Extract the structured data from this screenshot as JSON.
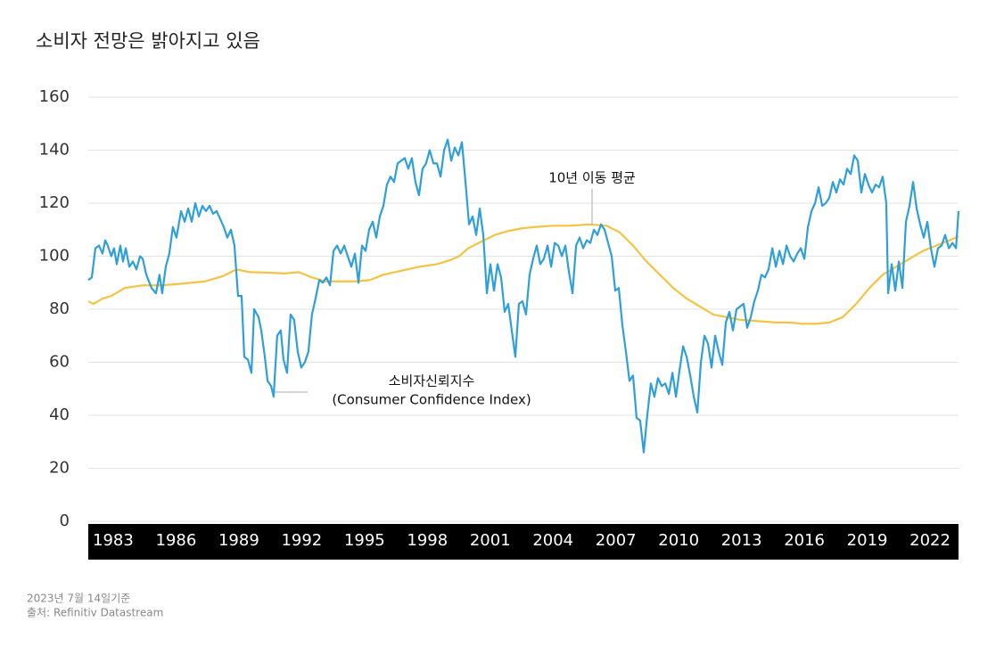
{
  "chart_data": {
    "type": "line",
    "title": "소비자 전망은 밝아지고 있음",
    "notes": [
      "2023년 7월 14일기준",
      "출처: Refinitiv Datastream"
    ],
    "xlim": [
      1981.81,
      2023.36
    ],
    "xticks": [
      1983,
      1986,
      1989,
      1992,
      1995,
      1998,
      2001,
      2004,
      2007,
      2010,
      2013,
      2016,
      2019,
      2022
    ],
    "ylim": [
      0,
      160
    ],
    "yticks": [
      0,
      20,
      40,
      60,
      80,
      100,
      120,
      140,
      160
    ],
    "grid": true,
    "series": [
      {
        "name": "소비자신뢰지수",
        "name_en": "(Consumer Confidence Index)",
        "color": "#2e9fd8",
        "x": [
          1981.81,
          1981.98,
          1982.15,
          1982.32,
          1982.49,
          1982.62,
          1982.74,
          1982.91,
          1983.04,
          1983.17,
          1983.34,
          1983.47,
          1983.6,
          1983.77,
          1983.94,
          1984.11,
          1984.28,
          1984.41,
          1984.58,
          1984.83,
          1985.04,
          1985.21,
          1985.34,
          1985.51,
          1985.68,
          1985.85,
          1986.02,
          1986.24,
          1986.41,
          1986.58,
          1986.75,
          1986.92,
          1987.09,
          1987.26,
          1987.43,
          1987.6,
          1987.77,
          1987.94,
          1988.11,
          1988.28,
          1988.45,
          1988.62,
          1988.79,
          1988.96,
          1989.13,
          1989.26,
          1989.43,
          1989.6,
          1989.73,
          1989.94,
          1990.07,
          1990.24,
          1990.37,
          1990.54,
          1990.66,
          1990.83,
          1991.0,
          1991.13,
          1991.3,
          1991.47,
          1991.64,
          1991.81,
          1991.98,
          1992.15,
          1992.32,
          1992.49,
          1992.66,
          1992.84,
          1993.01,
          1993.18,
          1993.35,
          1993.52,
          1993.69,
          1993.86,
          1994.03,
          1994.2,
          1994.37,
          1994.54,
          1994.71,
          1994.88,
          1995.05,
          1995.22,
          1995.39,
          1995.56,
          1995.73,
          1995.9,
          1996.07,
          1996.24,
          1996.41,
          1996.58,
          1996.75,
          1996.92,
          1997.09,
          1997.26,
          1997.43,
          1997.6,
          1997.77,
          1997.94,
          1998.11,
          1998.29,
          1998.46,
          1998.63,
          1998.8,
          1998.97,
          1999.14,
          1999.31,
          1999.48,
          1999.65,
          1999.82,
          1999.99,
          2000.16,
          2000.33,
          2000.5,
          2000.67,
          2000.84,
          2001.01,
          2001.18,
          2001.35,
          2001.52,
          2001.69,
          2001.86,
          2002.03,
          2002.2,
          2002.37,
          2002.54,
          2002.71,
          2002.88,
          2003.05,
          2003.22,
          2003.39,
          2003.56,
          2003.74,
          2003.91,
          2004.08,
          2004.25,
          2004.42,
          2004.59,
          2004.76,
          2004.93,
          2005.1,
          2005.27,
          2005.44,
          2005.61,
          2005.78,
          2005.95,
          2006.12,
          2006.29,
          2006.46,
          2006.63,
          2006.8,
          2006.97,
          2007.14,
          2007.31,
          2007.48,
          2007.65,
          2007.82,
          2007.99,
          2008.16,
          2008.33,
          2008.5,
          2008.67,
          2008.84,
          2009.01,
          2009.19,
          2009.36,
          2009.53,
          2009.7,
          2009.87,
          2010.04,
          2010.21,
          2010.38,
          2010.55,
          2010.72,
          2010.89,
          2011.06,
          2011.23,
          2011.4,
          2011.57,
          2011.74,
          2011.91,
          2012.08,
          2012.25,
          2012.42,
          2012.59,
          2012.76,
          2012.93,
          2013.1,
          2013.27,
          2013.44,
          2013.61,
          2013.78,
          2013.95,
          2014.12,
          2014.29,
          2014.47,
          2014.64,
          2014.81,
          2014.98,
          2015.15,
          2015.32,
          2015.49,
          2015.66,
          2015.83,
          2016.0,
          2016.17,
          2016.34,
          2016.51,
          2016.68,
          2016.85,
          2017.02,
          2017.19,
          2017.36,
          2017.53,
          2017.7,
          2017.87,
          2018.04,
          2018.21,
          2018.38,
          2018.55,
          2018.72,
          2018.89,
          2019.06,
          2019.23,
          2019.4,
          2019.57,
          2019.74,
          2019.91,
          2020.0,
          2020.17,
          2020.34,
          2020.51,
          2020.68,
          2020.85,
          2021.02,
          2021.19,
          2021.36,
          2021.53,
          2021.7,
          2021.87,
          2022.04,
          2022.21,
          2022.38,
          2022.55,
          2022.72,
          2022.9,
          2023.07,
          2023.24,
          2023.36
        ],
        "values": [
          91,
          92,
          103,
          104,
          101,
          106,
          104,
          100,
          103,
          97,
          104,
          98,
          103,
          96,
          98,
          95,
          100,
          99,
          93,
          88,
          86,
          93,
          86,
          96,
          101,
          111,
          107,
          117,
          113,
          118,
          113,
          120,
          115,
          119,
          117,
          119,
          116,
          117,
          114,
          111,
          107,
          110,
          104,
          85,
          85,
          62,
          61,
          56,
          80,
          77,
          72,
          62,
          53,
          51,
          47,
          70,
          72,
          61,
          56,
          78,
          76,
          64,
          58,
          60,
          64,
          78,
          84,
          91,
          90,
          92,
          89,
          102,
          104,
          101,
          104,
          100,
          96,
          101,
          90,
          104,
          102,
          110,
          113,
          107,
          115,
          119,
          127,
          130,
          128,
          135,
          136,
          137,
          133,
          137,
          128,
          123,
          133,
          135,
          140,
          135,
          135,
          130,
          140,
          144,
          136,
          141,
          138,
          143,
          128,
          112,
          115,
          108,
          118,
          108,
          86,
          97,
          87,
          97,
          92,
          79,
          82,
          72,
          62,
          82,
          83,
          78,
          93,
          99,
          104,
          97,
          99,
          104,
          96,
          105,
          104,
          100,
          104,
          94,
          86,
          104,
          107,
          103,
          106,
          105,
          110,
          108,
          112,
          110,
          105,
          100,
          87,
          88,
          74,
          64,
          53,
          55,
          39,
          38,
          26,
          40,
          52,
          47,
          54,
          51,
          52,
          48,
          56,
          47,
          57,
          66,
          62,
          55,
          47,
          41,
          60,
          70,
          67,
          58,
          70,
          64,
          59,
          75,
          79,
          72,
          80,
          81,
          82,
          73,
          77,
          83,
          87,
          93,
          92,
          95,
          103,
          96,
          102,
          97,
          104,
          100,
          98,
          101,
          103,
          99,
          111,
          117,
          120,
          126,
          119,
          120,
          122,
          128,
          124,
          129,
          127,
          133,
          131,
          138,
          136,
          124,
          131,
          127,
          124,
          127,
          126,
          130,
          120,
          86,
          97,
          87,
          98,
          88,
          113,
          119,
          128,
          118,
          112,
          107,
          113,
          103,
          96,
          103,
          104,
          108,
          103,
          105,
          103,
          117
        ]
      },
      {
        "name": "10년 이동 평균",
        "color": "#f5c342",
        "x": [
          1981.81,
          1982.06,
          1982.49,
          1982.91,
          1983.55,
          1984.41,
          1985.26,
          1986.11,
          1987.39,
          1988.24,
          1988.88,
          1989.51,
          1990.37,
          1991.22,
          1991.86,
          1992.49,
          1993.13,
          1993.77,
          1994.62,
          1995.26,
          1995.9,
          1996.75,
          1997.6,
          1998.46,
          1999.09,
          1999.52,
          1999.95,
          2000.58,
          2001.22,
          2001.86,
          2002.5,
          2003.14,
          2003.99,
          2004.84,
          2005.69,
          2006.55,
          2007.18,
          2007.82,
          2008.46,
          2009.1,
          2009.74,
          2010.38,
          2011.02,
          2011.65,
          2012.29,
          2012.93,
          2013.78,
          2014.64,
          2015.27,
          2015.91,
          2016.55,
          2017.19,
          2017.83,
          2018.47,
          2019.11,
          2019.74,
          2020.38,
          2021.02,
          2021.66,
          2022.3,
          2022.94,
          2023.36
        ],
        "values": [
          83,
          82,
          84,
          85,
          88,
          89,
          89,
          89.5,
          90.5,
          92.5,
          95,
          94,
          93.8,
          93.5,
          94,
          92,
          90.5,
          90.5,
          90.5,
          91,
          93,
          94.5,
          96,
          97,
          98.5,
          100,
          103,
          105.5,
          108,
          109.5,
          110.5,
          111,
          111.5,
          111.5,
          112,
          111.5,
          109,
          104,
          98,
          93,
          88,
          84,
          81,
          78,
          77,
          76,
          75.5,
          75,
          75,
          74.5,
          74.5,
          75,
          77,
          82,
          88,
          93,
          96,
          99,
          102,
          104,
          106,
          107.5
        ]
      }
    ]
  }
}
